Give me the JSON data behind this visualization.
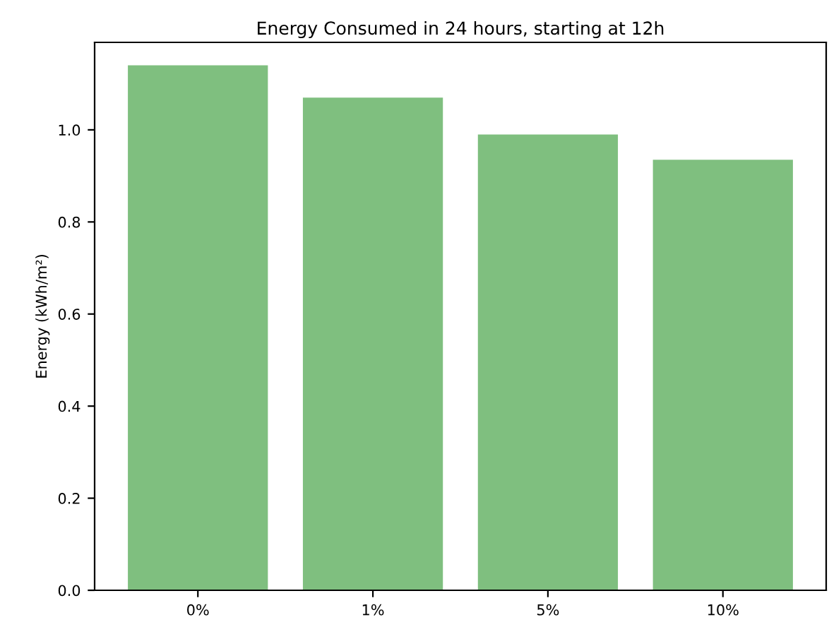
{
  "chart_data": {
    "type": "bar",
    "title": "Energy Consumed in 24 hours, starting at 12h",
    "ylabel": "Energy (kWh/m²)",
    "categories": [
      "0%",
      "1%",
      "5%",
      "10%"
    ],
    "values": [
      1.14,
      1.07,
      0.99,
      0.935
    ],
    "color": "#7fbf7f",
    "ylim": [
      0,
      1.19
    ],
    "yticks": [
      {
        "value": 0,
        "label": "0.0"
      },
      0.2,
      0.4,
      0.6,
      0.8,
      {
        "value": 1,
        "label": "1.0"
      }
    ],
    "grid": false
  }
}
